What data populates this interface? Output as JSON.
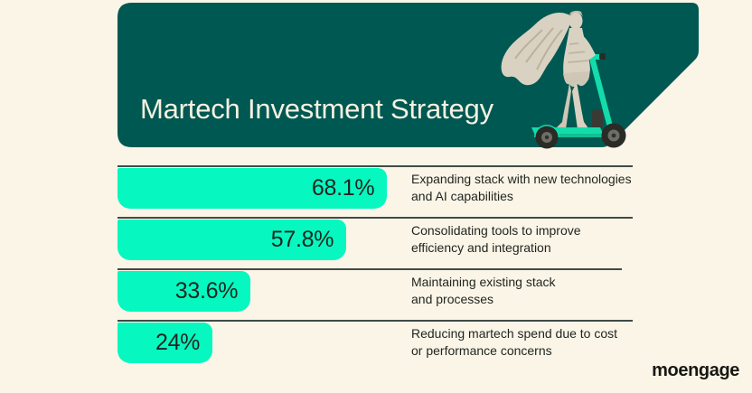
{
  "colors": {
    "background_cream": "#FAF5E7",
    "header_teal": "#005852",
    "bar_mint": "#06F8C0",
    "title_cream": "#F6F1E1",
    "line_dark": "#414B47",
    "text_dark": "#1F241F"
  },
  "header": {
    "title": "Martech Investment Strategy",
    "illustration": "classical-statue-riding-teal-scooter"
  },
  "chart_data": {
    "type": "bar",
    "orientation": "horizontal",
    "title": "Martech Investment Strategy",
    "categories": [
      "Expanding stack with new technologies and AI capabilities",
      "Consolidating tools to improve efficiency and integration",
      "Maintaining existing stack and processes",
      "Reducing martech spend due to cost or performance concerns"
    ],
    "values": [
      68.1,
      57.8,
      33.6,
      24
    ],
    "value_labels": [
      "68.1%",
      "57.8%",
      "33.6%",
      "24%"
    ],
    "xlim": [
      0,
      100
    ],
    "bar_color": "#06F8C0",
    "grid": false,
    "legend": false
  },
  "rows": [
    {
      "value": 68.1,
      "label": "68.1%",
      "desc": [
        "Expanding stack with new technologies",
        "and AI capabilities"
      ]
    },
    {
      "value": 57.8,
      "label": "57.8%",
      "desc": [
        "Consolidating tools to improve",
        "efficiency and integration"
      ]
    },
    {
      "value": 33.6,
      "label": "33.6%",
      "desc": [
        "Maintaining existing stack",
        "and processes"
      ]
    },
    {
      "value": 24,
      "label": "24%",
      "desc": [
        "Reducing martech spend due to cost",
        "or performance concerns"
      ]
    }
  ],
  "footer": {
    "brand": "moengage"
  }
}
